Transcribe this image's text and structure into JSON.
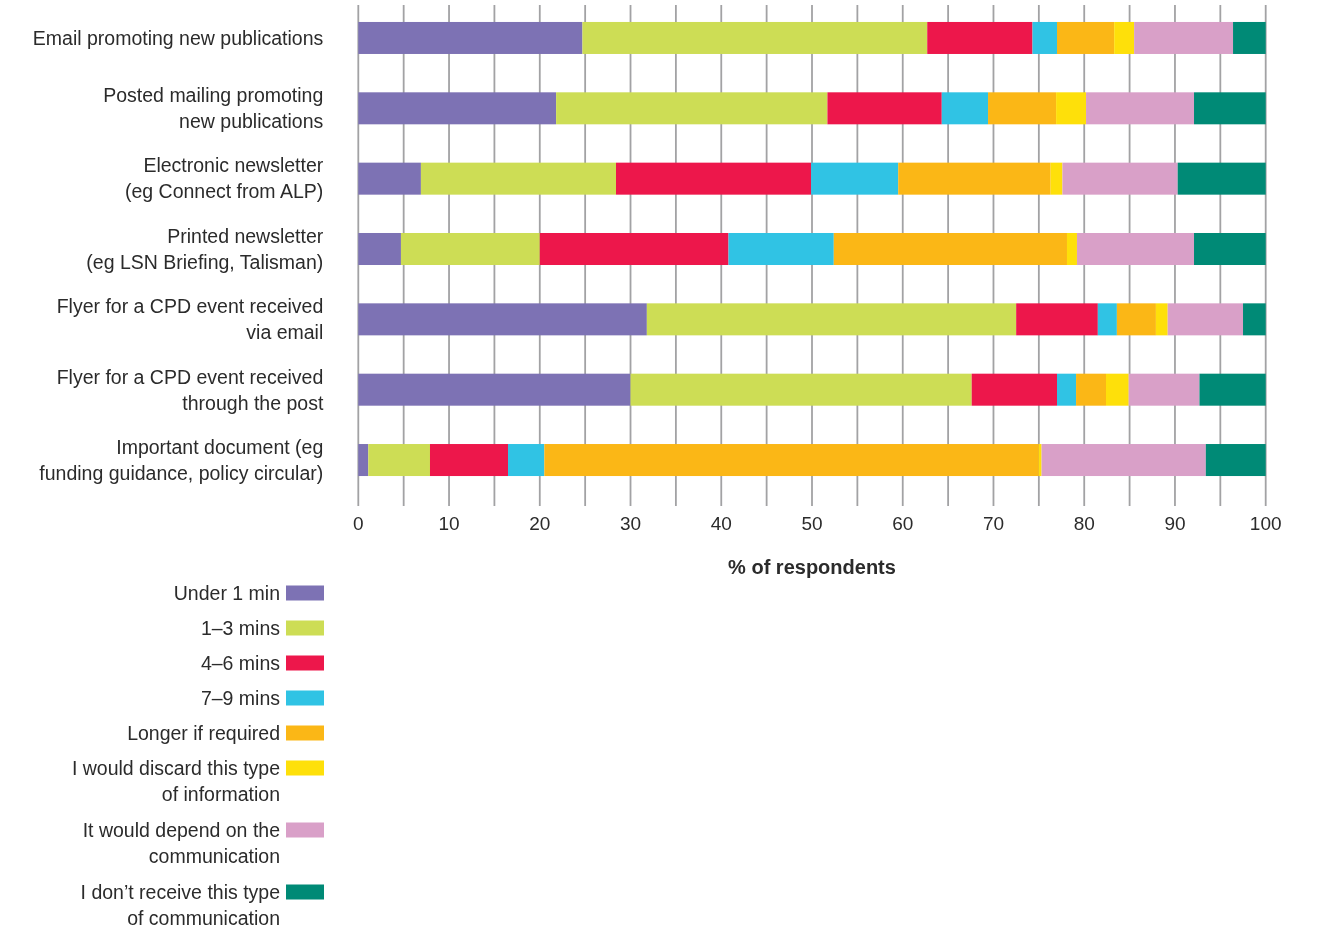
{
  "chart_data": {
    "type": "bar",
    "orientation": "horizontal",
    "stacked": true,
    "categories": [
      "Email promoting new publications",
      "Posted mailing promoting\nnew publications",
      "Electronic newsletter\n(eg Connect from ALP)",
      "Printed newsletter\n(eg LSN Briefing, Talisman)",
      "Flyer for a CPD event received\nvia email",
      "Flyer for a CPD event received\nthrough the post",
      "Important document (eg\nfunding guidance, policy circular)"
    ],
    "series": [
      {
        "name": "Under 1 min",
        "color": "#7d72b4",
        "values": [
          24.7,
          21.8,
          6.9,
          4.7,
          31.8,
          30.0,
          1.1
        ]
      },
      {
        "name": "1–3 mins",
        "color": "#cddd55",
        "values": [
          38.0,
          29.9,
          21.5,
          15.3,
          40.7,
          37.6,
          6.8
        ]
      },
      {
        "name": "4–6 mins",
        "color": "#ed174b",
        "values": [
          11.6,
          12.6,
          21.5,
          20.8,
          9.0,
          9.4,
          8.6
        ]
      },
      {
        "name": "7–9 mins",
        "color": "#30c3e4",
        "values": [
          2.7,
          5.1,
          9.6,
          11.6,
          2.1,
          2.1,
          4.0
        ]
      },
      {
        "name": "Longer if required",
        "color": "#fbb716",
        "values": [
          6.3,
          7.5,
          16.8,
          25.7,
          4.3,
          3.3,
          54.5
        ]
      },
      {
        "name": "I would discard this type\nof information",
        "color": "#fee00a",
        "values": [
          2.2,
          3.3,
          1.3,
          1.1,
          1.3,
          2.5,
          0.3
        ]
      },
      {
        "name": "It would depend on the\ncommunication",
        "color": "#d9a0c8",
        "values": [
          10.9,
          11.9,
          12.7,
          12.9,
          8.3,
          7.8,
          18.1
        ]
      },
      {
        "name": "I don’t receive this type\nof communication",
        "color": "#008a76",
        "values": [
          3.6,
          7.9,
          9.7,
          7.9,
          2.5,
          7.3,
          6.6
        ]
      }
    ],
    "xlim": [
      0,
      100
    ],
    "xticks": [
      0,
      {
        "value": 5,
        "label": null
      },
      10,
      {
        "value": 15,
        "label": null
      },
      20,
      {
        "value": 25,
        "label": null
      },
      30,
      {
        "value": 35,
        "label": null
      },
      40,
      {
        "value": 45,
        "label": null
      },
      50,
      {
        "value": 55,
        "label": null
      },
      60,
      {
        "value": 65,
        "label": null
      },
      70,
      {
        "value": 75,
        "label": null
      },
      80,
      {
        "value": 85,
        "label": null
      },
      90,
      {
        "value": 95,
        "label": null
      },
      100
    ],
    "xlabel": "% of respondents",
    "grid": "x",
    "legend": "bottom left"
  }
}
